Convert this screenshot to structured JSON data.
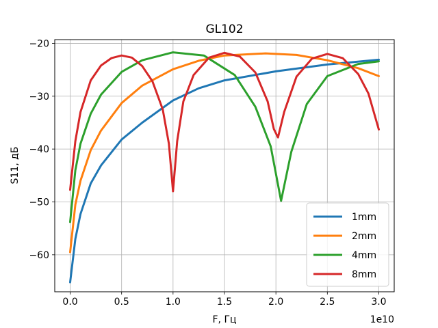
{
  "chart_data": {
    "type": "line",
    "title": "GL102",
    "xlabel": "F, Гц",
    "ylabel": "S11, дБ",
    "x_offset_label": "1e10",
    "xlim": [
      -1500000000.0,
      31500000000.0
    ],
    "ylim": [
      -67,
      -19.3
    ],
    "grid": true,
    "legend_position": "lower-right",
    "xticks": [
      {
        "value": 0,
        "label": "0.0"
      },
      {
        "value": 5000000000.0,
        "label": "0.5"
      },
      {
        "value": 10000000000.0,
        "label": "1.0"
      },
      {
        "value": 15000000000.0,
        "label": "1.5"
      },
      {
        "value": 20000000000.0,
        "label": "2.0"
      },
      {
        "value": 25000000000.0,
        "label": "2.5"
      },
      {
        "value": 30000000000.0,
        "label": "3.0"
      }
    ],
    "yticks": [
      {
        "value": -20,
        "label": "−20"
      },
      {
        "value": -30,
        "label": "−30"
      },
      {
        "value": -40,
        "label": "−40"
      },
      {
        "value": -50,
        "label": "−50"
      },
      {
        "value": -60,
        "label": "−60"
      }
    ],
    "series": [
      {
        "name": "1mm",
        "color": "#1f77b4",
        "x": [
          0,
          500000000.0,
          1000000000.0,
          2000000000.0,
          3000000000.0,
          5000000000.0,
          7000000000.0,
          10000000000.0,
          12500000000.0,
          15000000000.0,
          20000000000.0,
          25000000000.0,
          30000000000.0
        ],
        "y": [
          -65.2,
          -57,
          -52.3,
          -46.5,
          -43.1,
          -38.2,
          -35.0,
          -30.8,
          -28.5,
          -27.0,
          -25.3,
          -24.0,
          -23.1
        ]
      },
      {
        "name": "2mm",
        "color": "#ff7f0e",
        "x": [
          0,
          500000000.0,
          1000000000.0,
          2000000000.0,
          3000000000.0,
          5000000000.0,
          7000000000.0,
          10000000000.0,
          12500000000.0,
          15000000000.0,
          19000000000.0,
          22000000000.0,
          25000000000.0,
          28000000000.0,
          30000000000.0
        ],
        "y": [
          -59.5,
          -50.5,
          -46.0,
          -40.2,
          -36.5,
          -31.3,
          -28.0,
          -24.9,
          -23.3,
          -22.3,
          -21.9,
          -22.2,
          -23.2,
          -24.7,
          -26.2
        ]
      },
      {
        "name": "4mm",
        "color": "#2ca02c",
        "x": [
          0,
          500000000.0,
          1000000000.0,
          2000000000.0,
          3000000000.0,
          5000000000.0,
          7000000000.0,
          10000000000.0,
          13000000000.0,
          16000000000.0,
          18000000000.0,
          19500000000.0,
          20500000000.0,
          21500000000.0,
          23000000000.0,
          25000000000.0,
          28000000000.0,
          30000000000.0
        ],
        "y": [
          -53.8,
          -44.0,
          -39.0,
          -33.3,
          -29.7,
          -25.4,
          -23.2,
          -21.7,
          -22.3,
          -26.0,
          -32.0,
          -39.5,
          -49.8,
          -40.5,
          -31.5,
          -26.2,
          -23.9,
          -23.4
        ]
      },
      {
        "name": "8mm",
        "color": "#d62728",
        "x": [
          0,
          500000000.0,
          1000000000.0,
          2000000000.0,
          3000000000.0,
          4000000000.0,
          5000000000.0,
          6000000000.0,
          7000000000.0,
          8000000000.0,
          9000000000.0,
          9600000000.0,
          10000000000.0,
          10400000000.0,
          11000000000.0,
          12000000000.0,
          13500000000.0,
          15000000000.0,
          16500000000.0,
          18000000000.0,
          19200000000.0,
          19800000000.0,
          20200000000.0,
          20800000000.0,
          22000000000.0,
          23500000000.0,
          25000000000.0,
          26500000000.0,
          28000000000.0,
          29000000000.0,
          30000000000.0
        ],
        "y": [
          -47.7,
          -38.5,
          -33.0,
          -27.0,
          -24.2,
          -22.8,
          -22.3,
          -22.7,
          -24.3,
          -27.2,
          -32.5,
          -39.0,
          -48.0,
          -38.5,
          -31.0,
          -26.0,
          -22.7,
          -21.8,
          -22.5,
          -25.5,
          -31.0,
          -36.2,
          -37.8,
          -33.0,
          -26.3,
          -22.9,
          -22.0,
          -22.8,
          -25.8,
          -29.5,
          -36.3
        ]
      }
    ]
  }
}
